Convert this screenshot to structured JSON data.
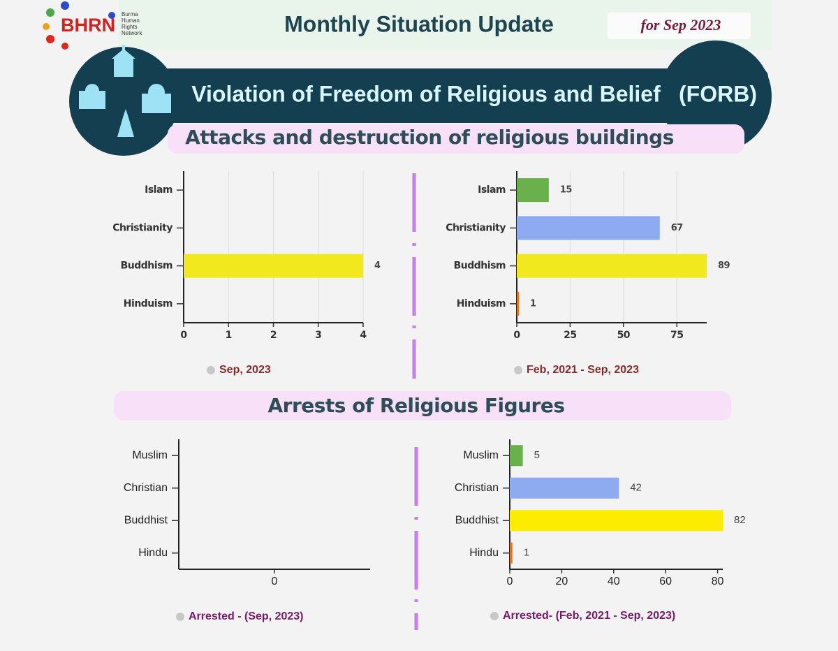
{
  "header": {
    "logo": "BHRN",
    "logo_lines": [
      "Burma",
      "Human",
      "Rights",
      "Network"
    ],
    "title": "Monthly Situation Update",
    "period": "for Sep 2023"
  },
  "banner": {
    "left": "Violation of Freedom of Religious and Belief",
    "right": "(FORB)"
  },
  "sections": [
    "Attacks and destruction of religious buildings",
    "Arrests of Religious Figures"
  ],
  "chart_data": [
    {
      "type": "bar",
      "orientation": "horizontal",
      "categories": [
        "Islam",
        "Christianity",
        "Buddhism",
        "Hinduism"
      ],
      "series": [
        {
          "name": "Sep, 2023",
          "values": [
            0,
            0,
            4,
            0
          ]
        }
      ],
      "colors": [
        "#6ab04c",
        "#8eaaf0",
        "#f2e81e",
        "#e8731a"
      ],
      "xlim": [
        0,
        4
      ],
      "xticks": [
        0,
        1,
        2,
        3,
        4
      ],
      "grid": true
    },
    {
      "type": "bar",
      "orientation": "horizontal",
      "categories": [
        "Islam",
        "Christianity",
        "Buddhism",
        "Hinduism"
      ],
      "series": [
        {
          "name": "Feb, 2021 - Sep, 2023",
          "values": [
            15,
            67,
            89,
            1
          ]
        }
      ],
      "colors": [
        "#6ab04c",
        "#8eaaf0",
        "#f2e81e",
        "#e8731a"
      ],
      "xlim": [
        0,
        89
      ],
      "xticks": [
        0,
        25,
        50,
        75
      ],
      "grid": true
    },
    {
      "type": "bar",
      "orientation": "horizontal",
      "categories": [
        "Muslim",
        "Christian",
        "Buddhist",
        "Hindu"
      ],
      "series": [
        {
          "name": "Arrested - (Sep, 2023)",
          "values": [
            0,
            0,
            0,
            0
          ]
        }
      ],
      "colors": [
        "#6ab04c",
        "#8eaaf0",
        "#fcec00",
        "#e8731a"
      ],
      "xlim": [
        -1,
        1
      ],
      "xticks": [
        0
      ],
      "grid": false
    },
    {
      "type": "bar",
      "orientation": "horizontal",
      "categories": [
        "Muslim",
        "Christian",
        "Buddhist",
        "Hindu"
      ],
      "series": [
        {
          "name": "Arrested- (Feb, 2021 - Sep, 2023)",
          "values": [
            5,
            42,
            82,
            1
          ]
        }
      ],
      "colors": [
        "#6ab04c",
        "#8eaaf0",
        "#fcec00",
        "#e8731a"
      ],
      "xlim": [
        0,
        82
      ],
      "xticks": [
        0,
        20,
        40,
        60,
        80
      ],
      "grid": false
    }
  ]
}
